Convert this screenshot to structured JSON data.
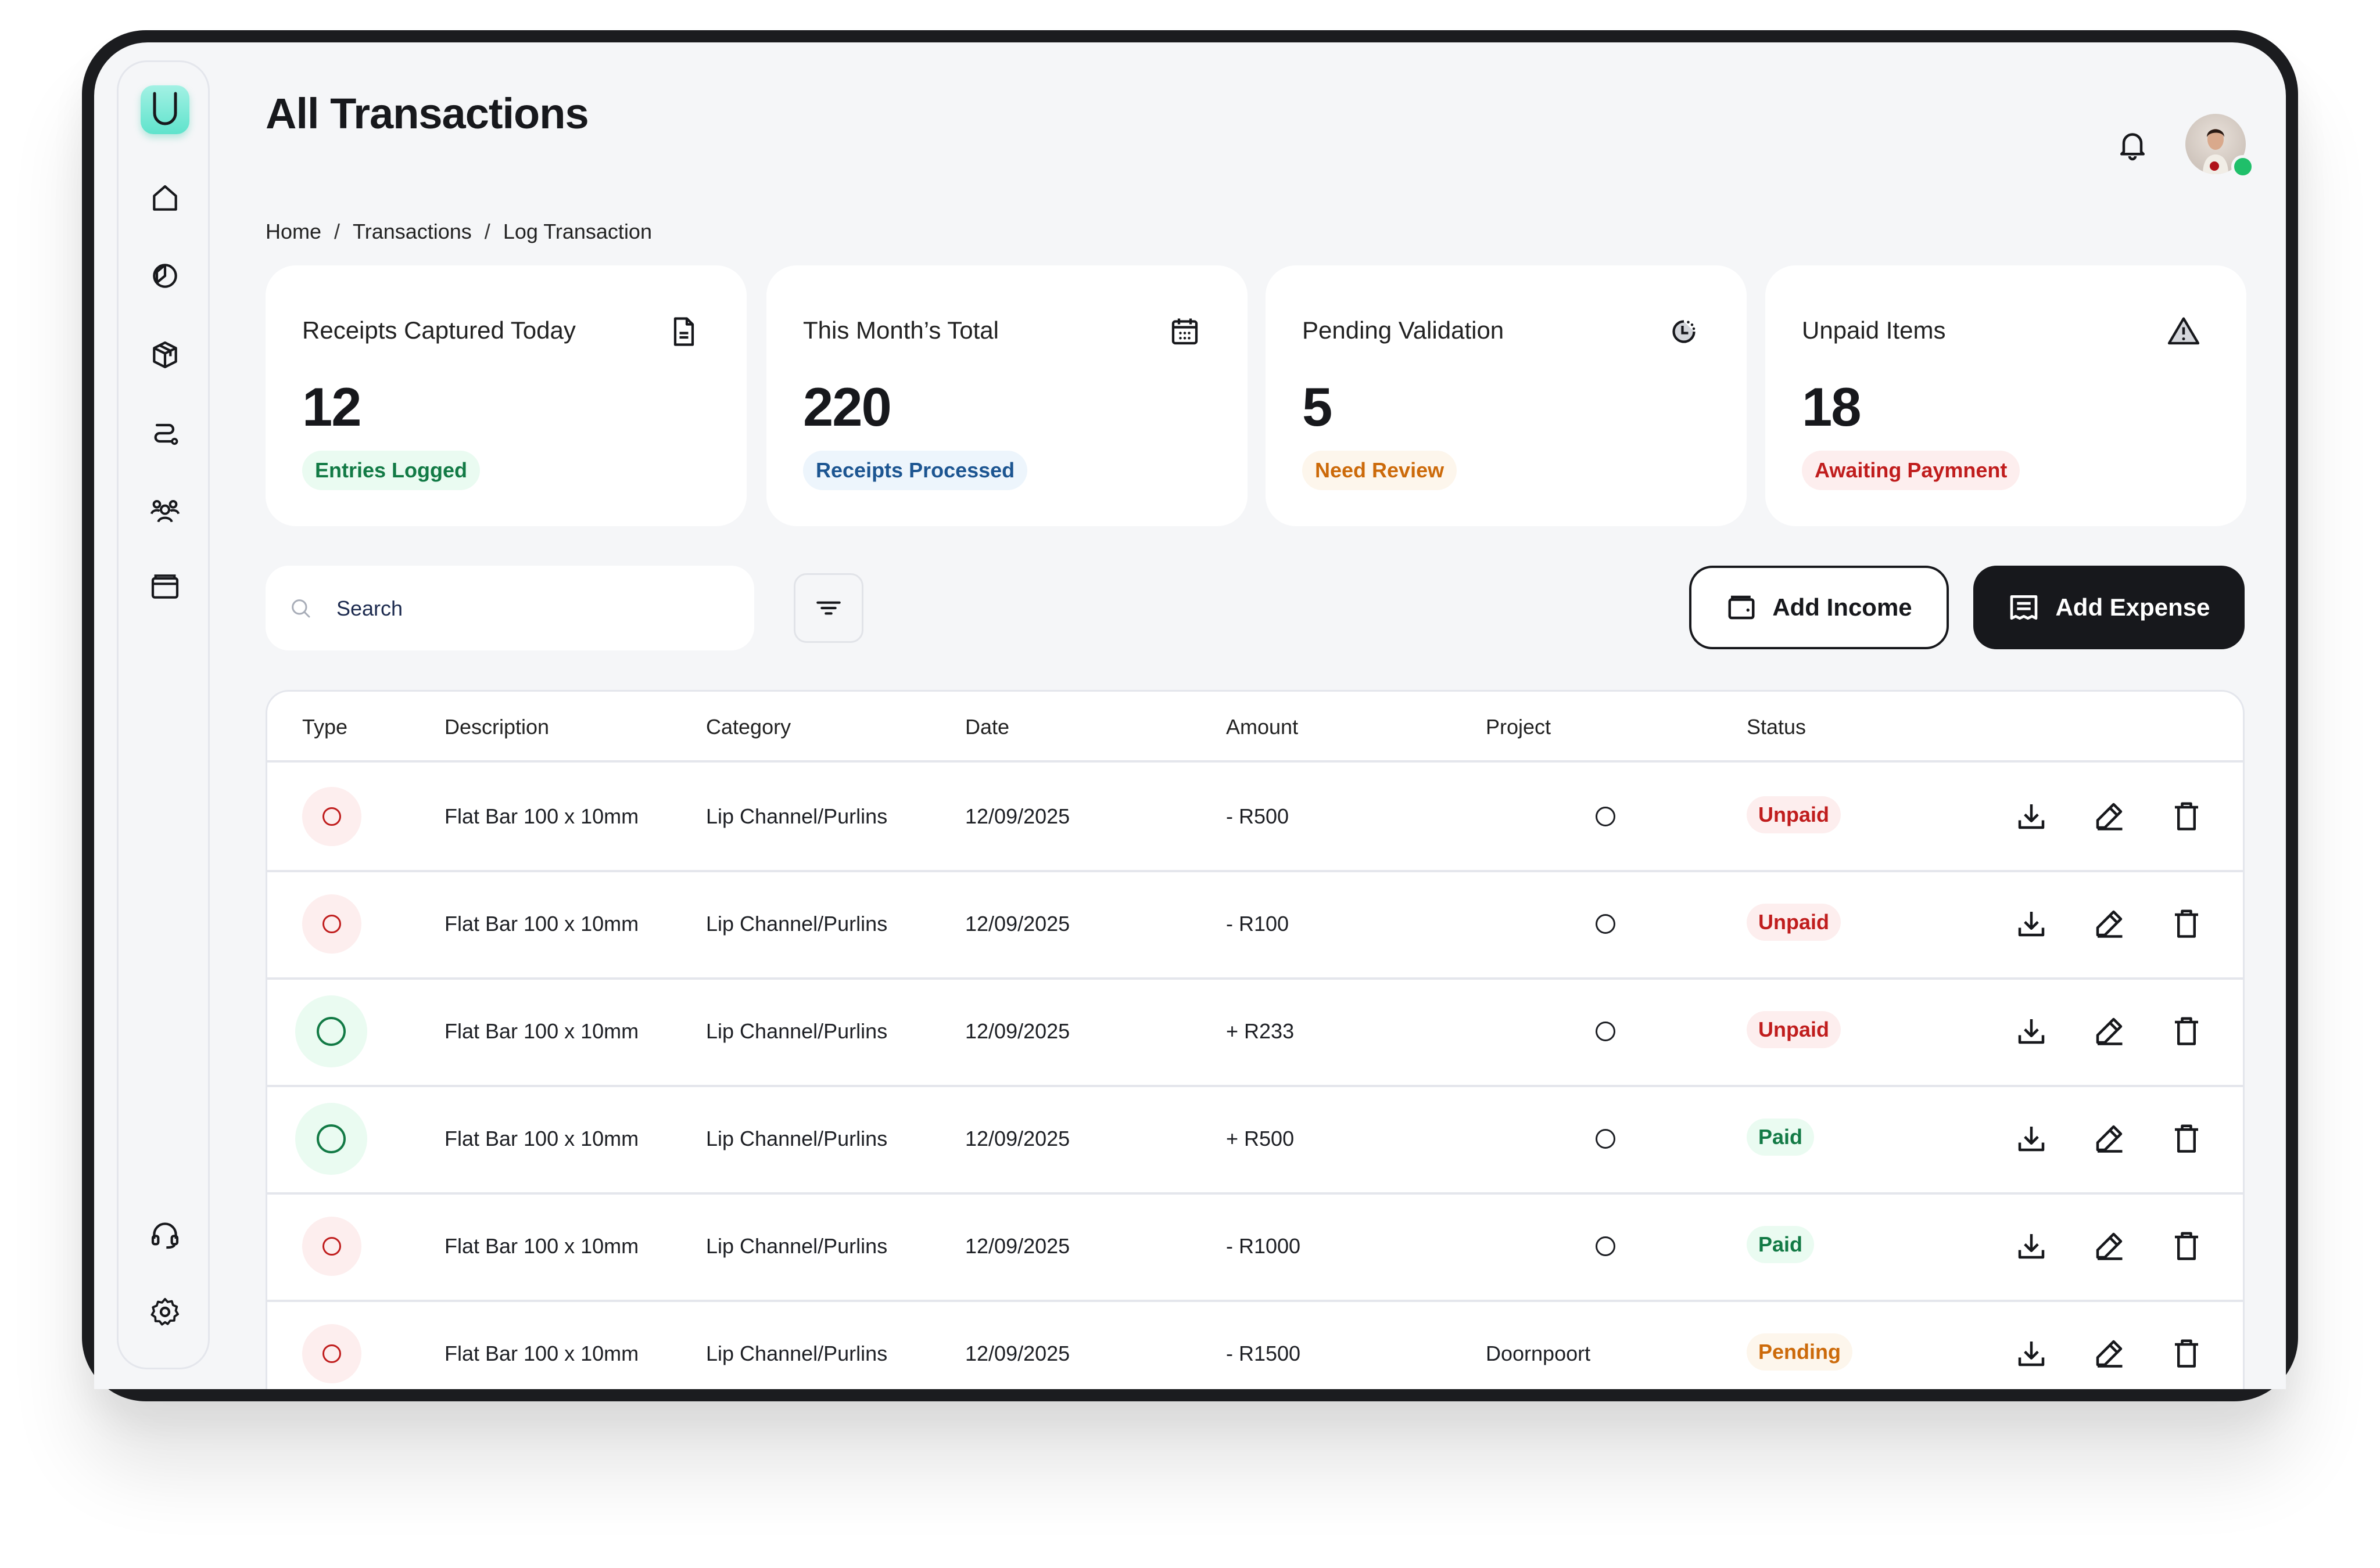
{
  "header": {
    "title": "All Transactions"
  },
  "breadcrumb": [
    "Home",
    "Transactions",
    "Log Transaction"
  ],
  "sidebar": {
    "logo_letter": "U",
    "items": [
      "home-icon",
      "analytics-icon",
      "inventory-icon",
      "routes-icon",
      "team-icon",
      "wallet-icon"
    ],
    "bottom_items": [
      "support-icon",
      "settings-icon"
    ]
  },
  "cards": [
    {
      "label": "Receipts Captured Today",
      "value": "12",
      "badge": "Entries Logged",
      "icon": "document-icon",
      "badge_color": "#127a45",
      "badge_bg": "#eafbf1"
    },
    {
      "label": "This Month’s Total",
      "value": "220",
      "badge": "Receipts Processed",
      "icon": "calendar-icon",
      "badge_color": "#1c5591",
      "badge_bg": "#edf5fc"
    },
    {
      "label": "Pending Validation",
      "value": "5",
      "badge": "Need Review",
      "icon": "clock-icon",
      "badge_color": "#cc6a0a",
      "badge_bg": "#fdf6ec"
    },
    {
      "label": "Unpaid Items",
      "value": "18",
      "badge": "Awaiting Paymnent",
      "icon": "warning-icon",
      "badge_color": "#c01d1d",
      "badge_bg": "#fdeeee"
    }
  ],
  "toolbar": {
    "search_placeholder": "Search",
    "add_income": "Add Income",
    "add_expense": "Add Expense"
  },
  "table": {
    "columns": [
      "Type",
      "Description",
      "Category",
      "Date",
      "Amount",
      "Project",
      "Status"
    ],
    "rows": [
      {
        "type": "expense",
        "description": "Flat Bar 100 x 10mm",
        "category": "Lip Channel/Purlins",
        "date": "12/09/2025",
        "amount": "- R500",
        "project": "",
        "status": "Unpaid"
      },
      {
        "type": "expense",
        "description": "Flat Bar 100 x 10mm",
        "category": "Lip Channel/Purlins",
        "date": "12/09/2025",
        "amount": "- R100",
        "project": "",
        "status": "Unpaid"
      },
      {
        "type": "income",
        "description": "Flat Bar 100 x 10mm",
        "category": "Lip Channel/Purlins",
        "date": "12/09/2025",
        "amount": "+ R233",
        "project": "",
        "status": "Unpaid"
      },
      {
        "type": "income",
        "description": "Flat Bar 100 x 10mm",
        "category": "Lip Channel/Purlins",
        "date": "12/09/2025",
        "amount": "+ R500",
        "project": "",
        "status": "Paid"
      },
      {
        "type": "expense",
        "description": "Flat Bar 100 x 10mm",
        "category": "Lip Channel/Purlins",
        "date": "12/09/2025",
        "amount": "- R1000",
        "project": "",
        "status": "Paid"
      },
      {
        "type": "expense",
        "description": "Flat Bar 100 x 10mm",
        "category": "Lip Channel/Purlins",
        "date": "12/09/2025",
        "amount": "- R1500",
        "project": "Doornpoort",
        "status": "Pending"
      }
    ]
  },
  "colors": {
    "accent": "#5fe3cc",
    "dark": "#17181c",
    "unpaid": "#c01d1d",
    "unpaid_bg": "#fdeeee",
    "paid": "#127a45",
    "paid_bg": "#eafbf1",
    "pending": "#cc6a0a",
    "pending_bg": "#fdf6ec",
    "online": "#1fbf6a"
  }
}
